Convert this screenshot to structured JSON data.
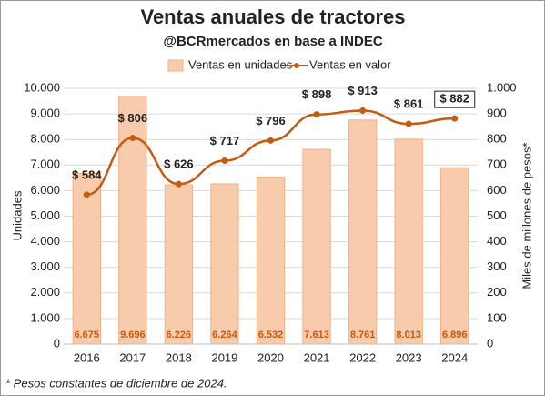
{
  "chart_data": {
    "type": "bar_line",
    "title": "Ventas anuales de tractores",
    "subtitle": "@BCRmercados en base a INDEC",
    "ylabel": "Unidades",
    "y2label": "Miles de millones de pesos*",
    "footnote": "* Pesos constantes de diciembre de 2024.",
    "categories": [
      "2016",
      "2017",
      "2018",
      "2019",
      "2020",
      "2021",
      "2022",
      "2023",
      "2024"
    ],
    "series": [
      {
        "name": "Ventas en unidades",
        "type": "bar",
        "color": "#f8cbad",
        "values": [
          6675,
          9696,
          6226,
          6264,
          6532,
          7613,
          8761,
          8013,
          6896
        ],
        "value_labels": [
          "6.675",
          "9.696",
          "6.226",
          "6.264",
          "6.532",
          "7.613",
          "8.761",
          "8.013",
          "6.896"
        ]
      },
      {
        "name": "Ventas en valor",
        "type": "line",
        "axis": "y2",
        "color": "#c55a11",
        "values": [
          584,
          806,
          626,
          717,
          796,
          898,
          913,
          861,
          882
        ],
        "value_labels": [
          "$ 584",
          "$ 806",
          "$ 626",
          "$ 717",
          "$ 796",
          "$ 898",
          "$ 913",
          "$ 861",
          "$ 882"
        ]
      }
    ],
    "ylim": [
      0,
      10000
    ],
    "yticks": [
      0,
      {
        "value": 1000,
        "label": "1.000"
      },
      {
        "value": 2000,
        "label": "2.000"
      },
      {
        "value": 3000,
        "label": "3.000"
      },
      {
        "value": 4000,
        "label": "4.000"
      },
      {
        "value": 5000,
        "label": "5.000"
      },
      {
        "value": 6000,
        "label": "6.000"
      },
      {
        "value": 7000,
        "label": "7.000"
      },
      {
        "value": 8000,
        "label": "8.000"
      },
      {
        "value": 9000,
        "label": "9.000"
      },
      {
        "value": 10000,
        "label": "10.000"
      }
    ],
    "y2lim": [
      0,
      1000
    ],
    "y2ticks": [
      0,
      100,
      200,
      300,
      400,
      500,
      600,
      700,
      800,
      900,
      {
        "value": 1000,
        "label": "1.000"
      }
    ],
    "grid": true
  }
}
